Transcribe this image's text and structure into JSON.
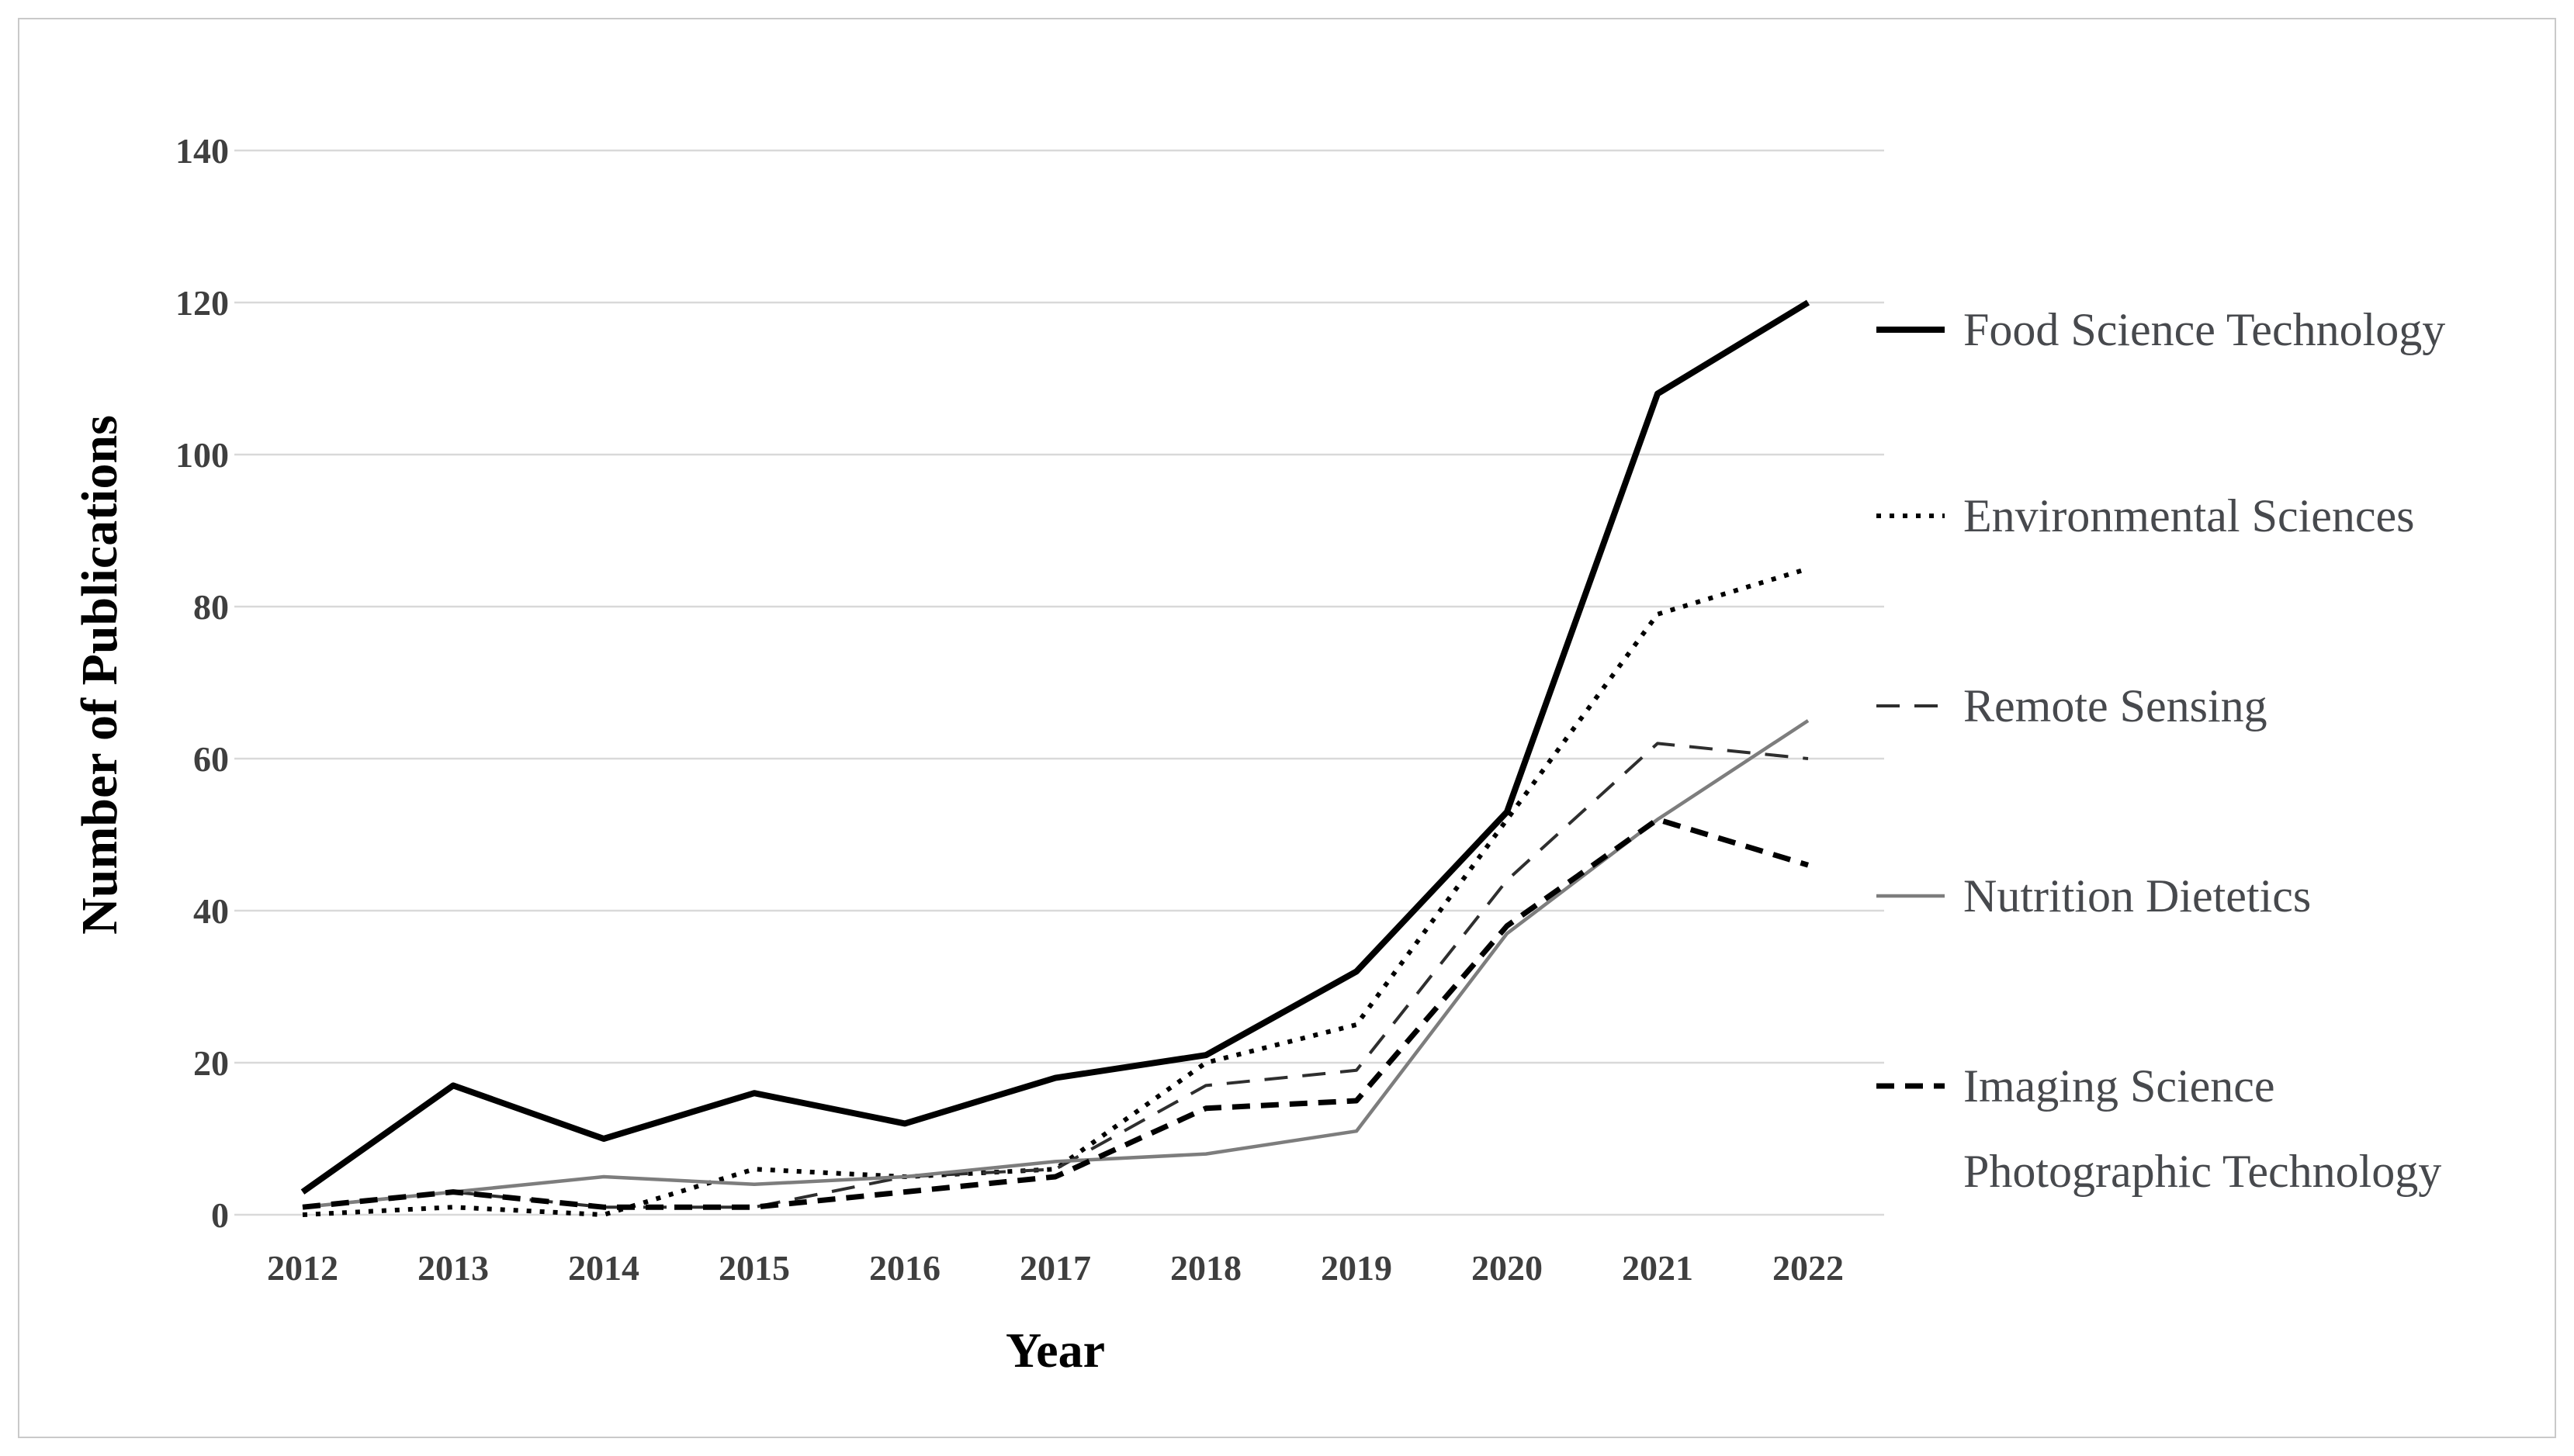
{
  "figure": {
    "background_color": "#ffffff",
    "border_color": "#c9c9c9"
  },
  "chart_data": {
    "type": "line",
    "title": "",
    "xlabel": "Year",
    "ylabel": "Number of Publications",
    "x": [
      2012,
      2013,
      2014,
      2015,
      2016,
      2017,
      2018,
      2019,
      2020,
      2021,
      2022
    ],
    "yticks": [
      0,
      20,
      40,
      60,
      80,
      100,
      120,
      140
    ],
    "ylim": [
      0,
      140
    ],
    "grid": true,
    "gridline_color": "#d9d9d9",
    "tick_label_color": "#3f3f3f",
    "axis_title_color": "#353535",
    "legend_position": "right",
    "legend_text_color": "#47494d",
    "series": [
      {
        "name": "Food Science Technology",
        "legend_lines": [
          "Food Science Technology"
        ],
        "values": [
          3,
          17,
          10,
          16,
          12,
          18,
          21,
          32,
          53,
          108,
          120
        ],
        "color": "#000000",
        "line_style": "solid",
        "thickness": "thick"
      },
      {
        "name": "Environmental Sciences",
        "legend_lines": [
          "Environmental Sciences"
        ],
        "values": [
          0,
          1,
          0,
          6,
          5,
          6,
          20,
          25,
          52,
          79,
          85
        ],
        "color": "#000000",
        "line_style": "dotted",
        "thickness": "medium"
      },
      {
        "name": "Remote Sensing",
        "legend_lines": [
          "Remote Sensing"
        ],
        "values": [
          1,
          3,
          1,
          1,
          5,
          6,
          17,
          19,
          44,
          62,
          60
        ],
        "color": "#2e2e2e",
        "line_style": "dashed",
        "thickness": "thin"
      },
      {
        "name": "Nutrition Dietetics",
        "legend_lines": [
          "Nutrition Dietetics"
        ],
        "values": [
          1,
          3,
          5,
          4,
          5,
          7,
          8,
          11,
          37,
          52,
          65
        ],
        "color": "#7d7d7d",
        "line_style": "solid",
        "thickness": "thin"
      },
      {
        "name": "Imaging Science Photographic Technology",
        "legend_lines": [
          "Imaging Science",
          "Photographic Technology"
        ],
        "values": [
          1,
          3,
          1,
          1,
          3,
          5,
          14,
          15,
          38,
          52,
          46
        ],
        "color": "#000000",
        "line_style": "dashed",
        "thickness": "thick"
      }
    ]
  }
}
